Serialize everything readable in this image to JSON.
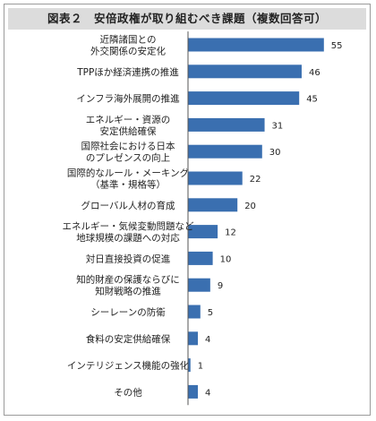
{
  "title": "図表２　安倍政権が取り組むべき課題（複数回答可）",
  "colors": {
    "bar": "#3a6fb0",
    "axis": "#555555",
    "title_bg": "#dcdcdc"
  },
  "chart_data": {
    "type": "bar",
    "orientation": "horizontal",
    "categories": [
      [
        "近隣諸国との",
        "外交関係の安定化"
      ],
      [
        "TPPほか経済連携の推進"
      ],
      [
        "インフラ海外展開の推進"
      ],
      [
        "エネルギー・資源の",
        "安定供給確保"
      ],
      [
        "国際社会における日本",
        "のプレゼンスの向上"
      ],
      [
        "国際的なルール・メーキング",
        "（基準・規格等）"
      ],
      [
        "グローバル人材の育成"
      ],
      [
        "エネルギー・気候変動問題など",
        "地球規模の課題への対応"
      ],
      [
        "対日直接投資の促進"
      ],
      [
        "知的財産の保護ならびに",
        "知財戦略の推進"
      ],
      [
        "シーレーンの防衛"
      ],
      [
        "食料の安定供給確保"
      ],
      [
        "インテリジェンス機能の強化"
      ],
      [
        "その他"
      ]
    ],
    "values": [
      55,
      46,
      45,
      31,
      30,
      22,
      20,
      12,
      10,
      9,
      5,
      4,
      1,
      4
    ],
    "xlim": [
      0,
      60
    ]
  }
}
